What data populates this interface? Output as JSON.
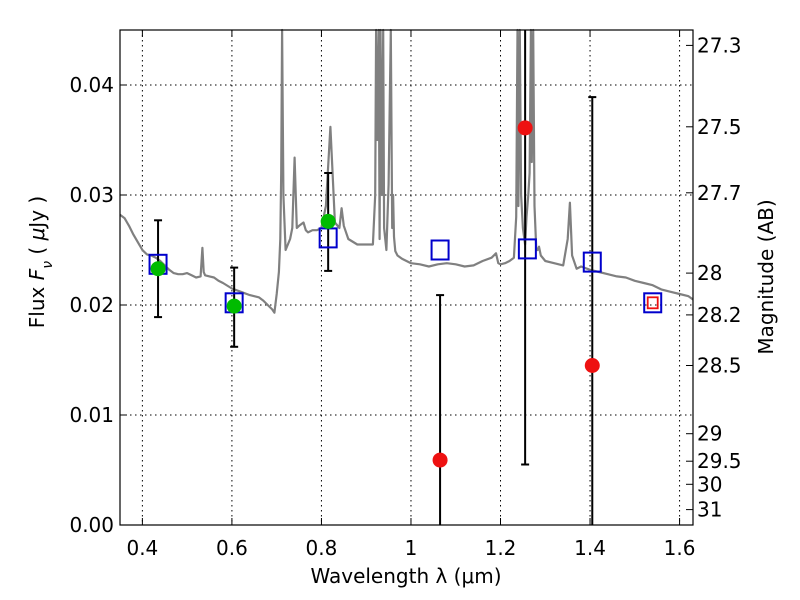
{
  "chart_data": {
    "type": "scatter",
    "title": "",
    "xlabel": "Wavelength  λ (μm)",
    "ylabel": "Flux  F_ν  ( μJy )",
    "ylabel_right": "Magnitude (AB)",
    "xlim": [
      0.35,
      1.63
    ],
    "ylim": [
      0.0,
      0.045
    ],
    "grid": true,
    "x_ticks": [
      {
        "value": 0.4,
        "label": "0.4"
      },
      {
        "value": 0.6,
        "label": "0.6"
      },
      {
        "value": 0.8,
        "label": "0.8"
      },
      {
        "value": 1.0,
        "label": "1"
      },
      {
        "value": 1.2,
        "label": "1.2"
      },
      {
        "value": 1.4,
        "label": "1.4"
      },
      {
        "value": 1.6,
        "label": "1.6"
      }
    ],
    "y_ticks": [
      {
        "value": 0.0,
        "label": "0.00"
      },
      {
        "value": 0.01,
        "label": "0.01"
      },
      {
        "value": 0.02,
        "label": "0.02"
      },
      {
        "value": 0.03,
        "label": "0.03"
      },
      {
        "value": 0.04,
        "label": "0.04"
      }
    ],
    "right_ticks": [
      {
        "flux": 0.0436,
        "label": "27.3"
      },
      {
        "flux": 0.0362,
        "label": "27.5"
      },
      {
        "flux": 0.0302,
        "label": "27.7"
      },
      {
        "flux": 0.0229,
        "label": "28"
      },
      {
        "flux": 0.0191,
        "label": "28.2"
      },
      {
        "flux": 0.0145,
        "label": "28.5"
      },
      {
        "flux": 0.0083,
        "label": "29"
      },
      {
        "flux": 0.0058,
        "label": "29.5"
      },
      {
        "flux": 0.0037,
        "label": "30"
      },
      {
        "flux": 0.0014,
        "label": "31"
      }
    ],
    "colors": {
      "model": "#808080",
      "detection": "#00bb00",
      "nondetection": "#ee1111",
      "model_photometry": "#0000cc",
      "red_box": "#ee1111",
      "errorbar": "#000000"
    },
    "series": [
      {
        "name": "",
        "role": "model_spectrum",
        "x": [
          0.35,
          0.36,
          0.37,
          0.38,
          0.39,
          0.4,
          0.41,
          0.42,
          0.43,
          0.44,
          0.45,
          0.46,
          0.47,
          0.48,
          0.49,
          0.5,
          0.51,
          0.52,
          0.53,
          0.534,
          0.537,
          0.54,
          0.55,
          0.56,
          0.57,
          0.58,
          0.6,
          0.62,
          0.64,
          0.66,
          0.67,
          0.68,
          0.69,
          0.695,
          0.7,
          0.705,
          0.708,
          0.71,
          0.712,
          0.715,
          0.72,
          0.73,
          0.735,
          0.74,
          0.745,
          0.75,
          0.76,
          0.765,
          0.77,
          0.775,
          0.78,
          0.79,
          0.8,
          0.81,
          0.82,
          0.83,
          0.84,
          0.845,
          0.85,
          0.86,
          0.88,
          0.9,
          0.915,
          0.92,
          0.922,
          0.925,
          0.928,
          0.93,
          0.932,
          0.935,
          0.938,
          0.94,
          0.945,
          0.95,
          0.955,
          0.958,
          0.96,
          0.962,
          0.965,
          0.97,
          0.98,
          1.0,
          1.02,
          1.04,
          1.06,
          1.08,
          1.1,
          1.12,
          1.14,
          1.16,
          1.18,
          1.19,
          1.195,
          1.2,
          1.21,
          1.22,
          1.23,
          1.235,
          1.238,
          1.24,
          1.243,
          1.246,
          1.25,
          1.255,
          1.258,
          1.262,
          1.265,
          1.268,
          1.27,
          1.273,
          1.276,
          1.28,
          1.283,
          1.286,
          1.29,
          1.3,
          1.32,
          1.34,
          1.35,
          1.355,
          1.36,
          1.37,
          1.38,
          1.4,
          1.42,
          1.44,
          1.46,
          1.48,
          1.5,
          1.52,
          1.54,
          1.56,
          1.58,
          1.6,
          1.62,
          1.63
        ],
        "y": [
          0.0282,
          0.0279,
          0.0272,
          0.0264,
          0.0257,
          0.025,
          0.0246,
          0.0245,
          0.0243,
          0.024,
          0.0236,
          0.0232,
          0.0229,
          0.0228,
          0.0228,
          0.0229,
          0.0227,
          0.0225,
          0.0226,
          0.0252,
          0.023,
          0.0227,
          0.0226,
          0.0225,
          0.0222,
          0.022,
          0.0215,
          0.0212,
          0.0209,
          0.0207,
          0.0204,
          0.02,
          0.0196,
          0.0193,
          0.021,
          0.023,
          0.026,
          0.032,
          0.0455,
          0.03,
          0.025,
          0.026,
          0.027,
          0.0334,
          0.027,
          0.0272,
          0.0275,
          0.0268,
          0.0266,
          0.0267,
          0.0268,
          0.0268,
          0.027,
          0.029,
          0.0362,
          0.0275,
          0.027,
          0.0288,
          0.0272,
          0.026,
          0.0255,
          0.0255,
          0.0255,
          0.03,
          0.0455,
          0.035,
          0.0455,
          0.026,
          0.0455,
          0.03,
          0.0455,
          0.027,
          0.025,
          0.031,
          0.0455,
          0.027,
          0.03,
          0.0262,
          0.0249,
          0.0245,
          0.0242,
          0.0238,
          0.0237,
          0.0235,
          0.0237,
          0.0238,
          0.0237,
          0.0235,
          0.0236,
          0.024,
          0.0243,
          0.0247,
          0.0238,
          0.0237,
          0.0238,
          0.024,
          0.0243,
          0.028,
          0.0455,
          0.029,
          0.0455,
          0.03,
          0.027,
          0.0255,
          0.028,
          0.03,
          0.032,
          0.0455,
          0.033,
          0.0455,
          0.029,
          0.025,
          0.025,
          0.0253,
          0.0245,
          0.024,
          0.0238,
          0.0236,
          0.026,
          0.0293,
          0.0245,
          0.0233,
          0.0235,
          0.0232,
          0.023,
          0.0228,
          0.0226,
          0.0225,
          0.0222,
          0.022,
          0.0218,
          0.0214,
          0.0212,
          0.021,
          0.0208,
          0.0205
        ]
      },
      {
        "name": "",
        "role": "detections",
        "x": [
          0.435,
          0.605,
          0.815
        ],
        "y": [
          0.0233,
          0.0199,
          0.0276
        ],
        "yerr_low": [
          0.0189,
          0.0162,
          0.0231
        ],
        "yerr_high": [
          0.0277,
          0.0234,
          0.032
        ]
      },
      {
        "name": "",
        "role": "non_detections",
        "x": [
          1.065,
          1.255,
          1.405
        ],
        "y": [
          0.0059,
          0.0361,
          0.0145
        ],
        "yerr_low": [
          0.0,
          0.0055,
          0.0
        ],
        "yerr_high": [
          0.0209,
          0.0455,
          0.0389
        ]
      },
      {
        "name": "",
        "role": "model_photometry",
        "x": [
          0.435,
          0.605,
          0.815,
          1.065,
          1.26,
          1.405,
          1.54
        ],
        "y": [
          0.0237,
          0.0202,
          0.0261,
          0.025,
          0.0251,
          0.0239,
          0.0202
        ]
      },
      {
        "name": "",
        "role": "highlighted_band",
        "x": [
          1.54
        ],
        "y": [
          0.0202
        ]
      }
    ]
  }
}
